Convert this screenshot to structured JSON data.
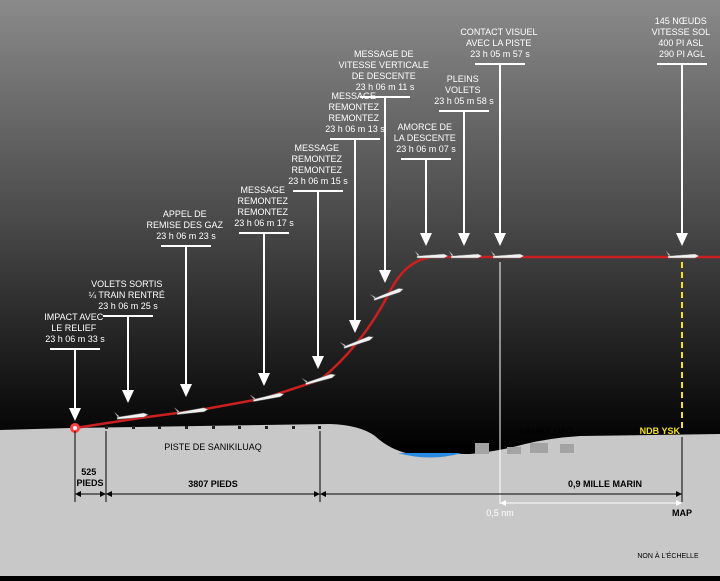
{
  "callouts": [
    {
      "id": "impact",
      "lines": [
        "IMPACT AVEC",
        "LE RELIEF",
        "23 h 06 m 33 s"
      ]
    },
    {
      "id": "volets",
      "lines": [
        "VOLETS SORTIS",
        "¼ TRAIN RENTRÉ",
        "23 h 06 m 25 s"
      ]
    },
    {
      "id": "remise",
      "lines": [
        "APPEL DE",
        "REMISE DES GAZ",
        "23 h 06 m 23 s"
      ]
    },
    {
      "id": "remontez17",
      "lines": [
        "MESSAGE",
        "REMONTEZ",
        "REMONTEZ",
        "23 h 06 m 17 s"
      ]
    },
    {
      "id": "remontez15",
      "lines": [
        "MESSAGE",
        "REMONTEZ",
        "REMONTEZ",
        "23 h 06 m 15 s"
      ]
    },
    {
      "id": "remontez13",
      "lines": [
        "MESSAGE",
        "REMONTEZ",
        "REMONTEZ",
        "23 h 06 m 13 s"
      ]
    },
    {
      "id": "vitesse",
      "lines": [
        "MESSAGE DE",
        "VITESSE VERTICALE",
        "DE DESCENTE",
        "23 h 06 m 11 s"
      ]
    },
    {
      "id": "amorce",
      "lines": [
        "AMORCE DE",
        "LA DESCENTE",
        "23 h 06 m 07 s"
      ]
    },
    {
      "id": "pleins",
      "lines": [
        "PLEINS",
        "VOLETS",
        "23 h 05 m 58 s"
      ]
    },
    {
      "id": "contact",
      "lines": [
        "CONTACT VISUEL",
        "AVEC LA PISTE",
        "23 h 05 m 57 s"
      ]
    },
    {
      "id": "vitesse-sol",
      "lines": [
        "145 NŒUDS",
        "VITESSE SOL",
        "400 PI ASL",
        "290 PI AGL"
      ]
    }
  ],
  "labels": {
    "runway": "PISTE DE SANIKILUAQ",
    "town": "SANIKILUAQ",
    "ndb": "NDB YSK",
    "map": "MAP",
    "not_to_scale": "NON À L'ÉCHELLE"
  },
  "dimensions": {
    "d525": [
      "525",
      "PIEDS"
    ],
    "d3807": "3807 PIEDS",
    "d09": "0,9 MILLE MARIN",
    "d05": "0,5 nm"
  },
  "colors": {
    "path": "#cc1f1f",
    "ndb": "#f2e21a",
    "water": "#2a8be0",
    "ground": "#c9c9c9"
  }
}
